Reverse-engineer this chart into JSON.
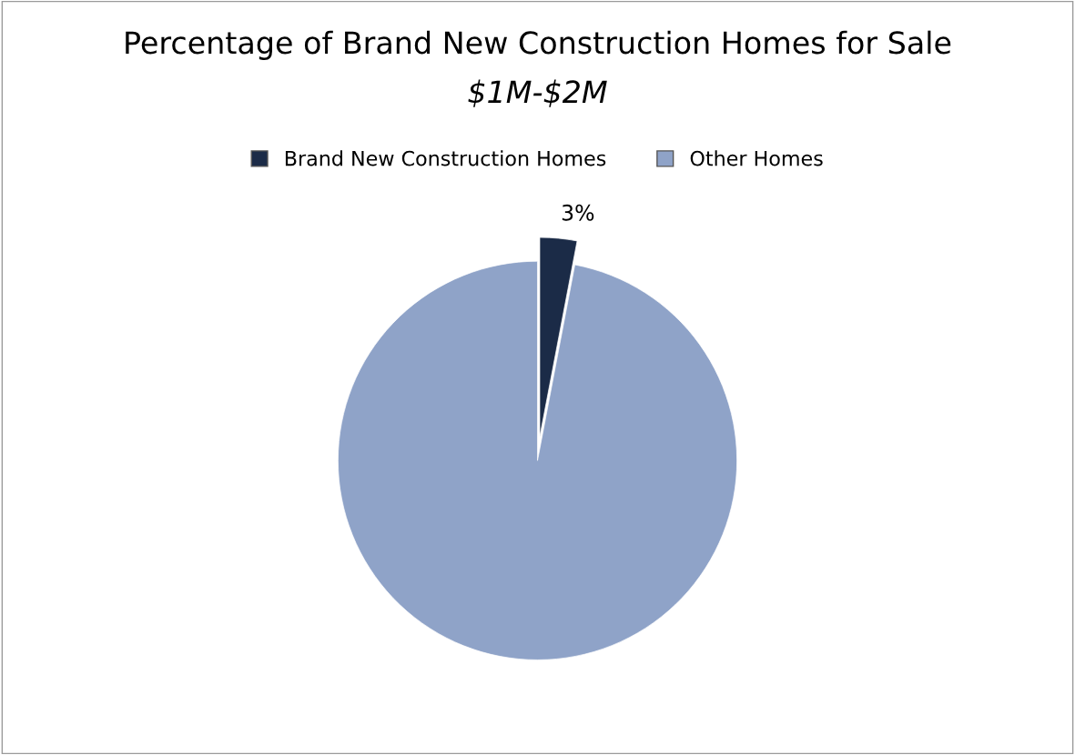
{
  "chart_data": {
    "type": "pie",
    "title": "Percentage of Brand New Construction Homes for Sale",
    "subtitle": "$1M-$2M",
    "categories": [
      "Brand New Construction Homes",
      "Other Homes"
    ],
    "values": [
      3,
      97
    ],
    "colors": [
      "#1b2b47",
      "#8fa3c8"
    ],
    "value_labels": [
      "3%",
      null
    ],
    "legend": "top"
  }
}
